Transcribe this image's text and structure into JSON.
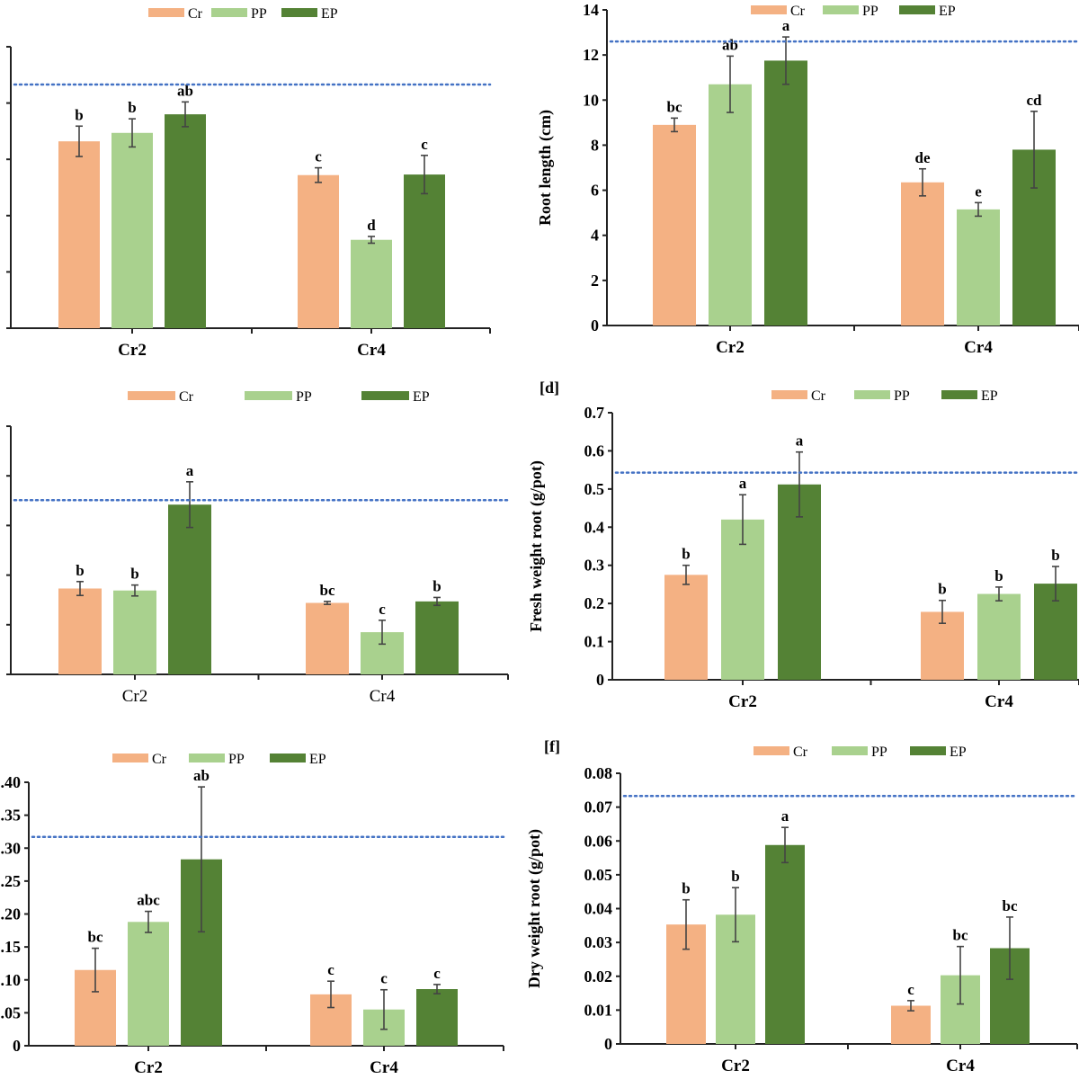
{
  "colors": {
    "Cr": "#F4B183",
    "PP": "#A9D18E",
    "EP": "#548235",
    "reference_line": "#4472C4",
    "axis": "#222222",
    "error_bar": "#444444"
  },
  "chart_data": [
    {
      "type": "bar",
      "panel_label": "",
      "ylabel": "",
      "ylim": [
        0,
        5
      ],
      "ytick_step": 1,
      "ytick_labels_visible": false,
      "categories": [
        "Cr2",
        "Cr4"
      ],
      "category_labels_bold": true,
      "legend": [
        "Cr",
        "PP",
        "EP"
      ],
      "legend_placement": "top-center",
      "reference_line": 4.33,
      "series": [
        {
          "name": "Cr",
          "values": [
            3.32,
            2.72
          ],
          "errors": [
            0.27,
            0.13
          ],
          "letters": [
            "b",
            "c"
          ]
        },
        {
          "name": "PP",
          "values": [
            3.47,
            1.57
          ],
          "errors": [
            0.25,
            0.06
          ],
          "letters": [
            "b",
            "d"
          ]
        },
        {
          "name": "EP",
          "values": [
            3.8,
            2.73
          ],
          "errors": [
            0.22,
            0.34
          ],
          "letters": [
            "ab",
            "c"
          ]
        }
      ]
    },
    {
      "type": "bar",
      "panel_label": "",
      "ylabel": "Root length (cm)",
      "ylim": [
        0,
        14
      ],
      "ytick_step": 2,
      "ytick_labels_visible": true,
      "ytick_decimals": 0,
      "categories": [
        "Cr2",
        "Cr4"
      ],
      "category_labels_bold": true,
      "legend": [
        "Cr",
        "PP",
        "EP"
      ],
      "legend_placement": "top-center",
      "reference_line": 12.6,
      "series": [
        {
          "name": "Cr",
          "values": [
            8.9,
            6.35
          ],
          "errors": [
            0.3,
            0.6
          ],
          "letters": [
            "bc",
            "de"
          ]
        },
        {
          "name": "PP",
          "values": [
            10.7,
            5.15
          ],
          "errors": [
            1.25,
            0.3
          ],
          "letters": [
            "ab",
            "e"
          ]
        },
        {
          "name": "EP",
          "values": [
            11.75,
            7.8
          ],
          "errors": [
            1.05,
            1.7
          ],
          "letters": [
            "a",
            "cd"
          ]
        }
      ]
    },
    {
      "type": "bar",
      "panel_label": "",
      "ylabel": "",
      "ylim": [
        0,
        5
      ],
      "ytick_step": 1,
      "ytick_labels_visible": false,
      "categories": [
        "Cr2",
        "Cr4"
      ],
      "category_labels_bold": false,
      "legend": [
        "Cr",
        "PP",
        "EP"
      ],
      "legend_placement": "top-center",
      "reference_line": 3.51,
      "series": [
        {
          "name": "Cr",
          "values": [
            1.73,
            1.44
          ],
          "errors": [
            0.14,
            0.03
          ],
          "letters": [
            "b",
            "bc"
          ]
        },
        {
          "name": "PP",
          "values": [
            1.69,
            0.85
          ],
          "errors": [
            0.11,
            0.24
          ],
          "letters": [
            "b",
            "c"
          ]
        },
        {
          "name": "EP",
          "values": [
            3.42,
            1.47
          ],
          "errors": [
            0.46,
            0.08
          ],
          "letters": [
            "a",
            "b"
          ]
        }
      ]
    },
    {
      "type": "bar",
      "panel_label": "[d]",
      "ylabel": "Fresh weight root (g/pot)",
      "ylim": [
        0,
        0.7
      ],
      "ytick_step": 0.1,
      "ytick_labels_visible": true,
      "ytick_decimals": 1,
      "categories": [
        "Cr2",
        "Cr4"
      ],
      "category_labels_bold": true,
      "legend": [
        "Cr",
        "PP",
        "EP"
      ],
      "legend_placement": "top-center",
      "reference_line": 0.543,
      "series": [
        {
          "name": "Cr",
          "values": [
            0.275,
            0.178
          ],
          "errors": [
            0.025,
            0.03
          ],
          "letters": [
            "b",
            "b"
          ]
        },
        {
          "name": "PP",
          "values": [
            0.42,
            0.225
          ],
          "errors": [
            0.065,
            0.018
          ],
          "letters": [
            "a",
            "b"
          ]
        },
        {
          "name": "EP",
          "values": [
            0.512,
            0.252
          ],
          "errors": [
            0.085,
            0.045
          ],
          "letters": [
            "a",
            "b"
          ]
        }
      ]
    },
    {
      "type": "bar",
      "panel_label": "",
      "ylabel": "",
      "ylim": [
        0,
        0.4
      ],
      "ytick_step": 0.05,
      "ytick_labels_visible": true,
      "ytick_decimals": 2,
      "categories": [
        "Cr2",
        "Cr4"
      ],
      "category_labels_bold": true,
      "legend": [
        "Cr",
        "PP",
        "EP"
      ],
      "legend_placement": "top-center",
      "reference_line": 0.317,
      "series": [
        {
          "name": "Cr",
          "values": [
            0.115,
            0.078
          ],
          "errors": [
            0.033,
            0.02
          ],
          "letters": [
            "bc",
            "c"
          ]
        },
        {
          "name": "PP",
          "values": [
            0.188,
            0.055
          ],
          "errors": [
            0.016,
            0.03
          ],
          "letters": [
            "abc",
            "c"
          ]
        },
        {
          "name": "EP",
          "values": [
            0.283,
            0.086
          ],
          "errors": [
            0.11,
            0.007
          ],
          "letters": [
            "ab",
            "c"
          ]
        }
      ]
    },
    {
      "type": "bar",
      "panel_label": "[f]",
      "ylabel": "Dry weight root (g/pot)",
      "ylim": [
        0,
        0.08
      ],
      "ytick_step": 0.01,
      "ytick_labels_visible": true,
      "ytick_decimals": 2,
      "categories": [
        "Cr2",
        "Cr4"
      ],
      "category_labels_bold": true,
      "legend": [
        "Cr",
        "PP",
        "EP"
      ],
      "legend_placement": "top-center",
      "reference_line": 0.0733,
      "series": [
        {
          "name": "Cr",
          "values": [
            0.0353,
            0.0113
          ],
          "errors": [
            0.0073,
            0.0015
          ],
          "letters": [
            "b",
            "c"
          ]
        },
        {
          "name": "PP",
          "values": [
            0.0382,
            0.0203
          ],
          "errors": [
            0.008,
            0.0085
          ],
          "letters": [
            "b",
            "bc"
          ]
        },
        {
          "name": "EP",
          "values": [
            0.0588,
            0.0283
          ],
          "errors": [
            0.0052,
            0.0092
          ],
          "letters": [
            "a",
            "bc"
          ]
        }
      ]
    }
  ]
}
